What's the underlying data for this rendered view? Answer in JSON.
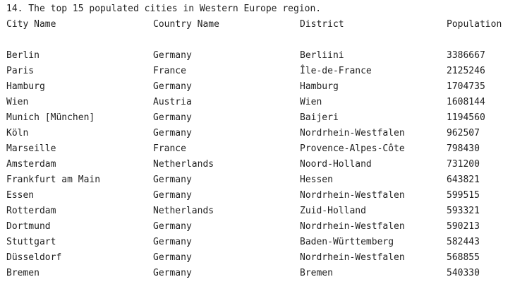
{
  "heading": "14. The top 15 populated cities in Western Europe region.",
  "columns": {
    "city": "City Name",
    "country": "Country Name",
    "district": "District",
    "population": "Population"
  },
  "rows": [
    {
      "city": "Berlin",
      "country": "Germany",
      "district": "Berliini",
      "population": "3386667"
    },
    {
      "city": "Paris",
      "country": "France",
      "district": "Île-de-France",
      "population": "2125246"
    },
    {
      "city": "Hamburg",
      "country": "Germany",
      "district": "Hamburg",
      "population": "1704735"
    },
    {
      "city": "Wien",
      "country": "Austria",
      "district": "Wien",
      "population": "1608144"
    },
    {
      "city": "Munich [München]",
      "country": "Germany",
      "district": "Baijeri",
      "population": "1194560"
    },
    {
      "city": "Köln",
      "country": "Germany",
      "district": "Nordrhein-Westfalen",
      "population": "962507"
    },
    {
      "city": "Marseille",
      "country": "France",
      "district": "Provence-Alpes-Côte",
      "population": "798430"
    },
    {
      "city": "Amsterdam",
      "country": "Netherlands",
      "district": "Noord-Holland",
      "population": "731200"
    },
    {
      "city": "Frankfurt am Main",
      "country": "Germany",
      "district": "Hessen",
      "population": "643821"
    },
    {
      "city": "Essen",
      "country": "Germany",
      "district": "Nordrhein-Westfalen",
      "population": "599515"
    },
    {
      "city": "Rotterdam",
      "country": "Netherlands",
      "district": "Zuid-Holland",
      "population": "593321"
    },
    {
      "city": "Dortmund",
      "country": "Germany",
      "district": "Nordrhein-Westfalen",
      "population": "590213"
    },
    {
      "city": "Stuttgart",
      "country": "Germany",
      "district": "Baden-Württemberg",
      "population": "582443"
    },
    {
      "city": "Düsseldorf",
      "country": "Germany",
      "district": "Nordrhein-Westfalen",
      "population": "568855"
    },
    {
      "city": "Bremen",
      "country": "Germany",
      "district": "Bremen",
      "population": "540330"
    }
  ]
}
